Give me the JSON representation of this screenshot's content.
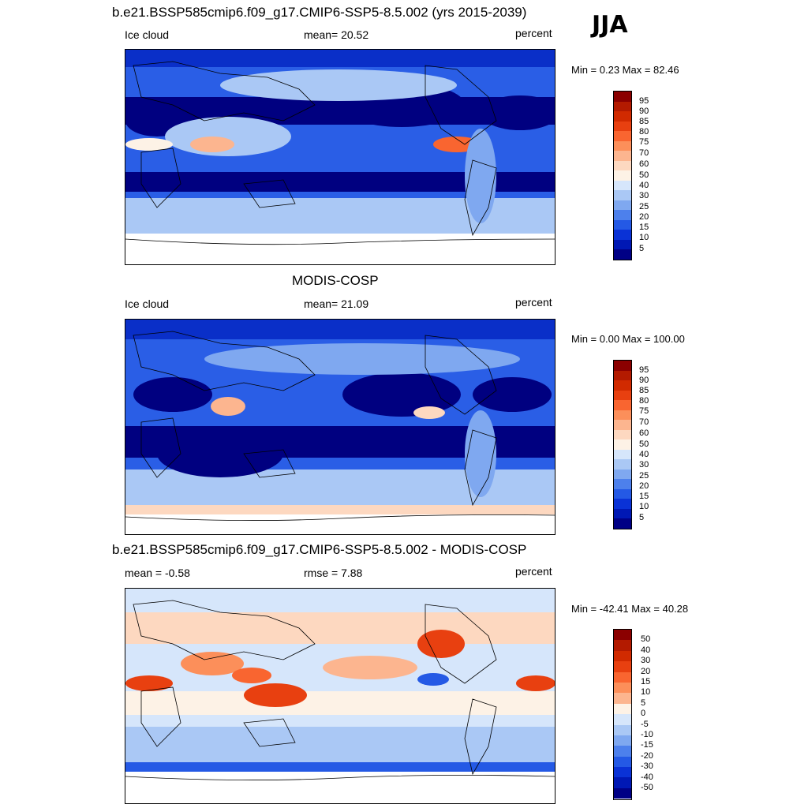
{
  "season": "JJA",
  "panels": [
    {
      "title": "b.e21.BSSP585cmip6.f09_g17.CMIP6-SSP5-8.5.002 (yrs 2015-2039)",
      "left_text": "Ice cloud",
      "center_text": "mean=  20.52",
      "right_text": "percent",
      "minmax": "Min =   0.23 Max =  82.46",
      "colorbar_labels": [
        "95",
        "90",
        "85",
        "80",
        "75",
        "70",
        "60",
        "50",
        "40",
        "30",
        "25",
        "20",
        "15",
        "10",
        "5"
      ]
    },
    {
      "title": "MODIS-COSP",
      "left_text": "Ice cloud",
      "center_text": "mean=  21.09",
      "right_text": "percent",
      "minmax": "Min =   0.00 Max = 100.00",
      "colorbar_labels": [
        "95",
        "90",
        "85",
        "80",
        "75",
        "70",
        "60",
        "50",
        "40",
        "30",
        "25",
        "20",
        "15",
        "10",
        "5"
      ]
    },
    {
      "title": "b.e21.BSSP585cmip6.f09_g17.CMIP6-SSP5-8.5.002 - MODIS-COSP",
      "left_text": "mean =  -0.58",
      "center_text": "rmse =   7.88",
      "right_text": "percent",
      "minmax": "Min = -42.41 Max =  40.28",
      "colorbar_labels": [
        "50",
        "40",
        "30",
        "20",
        "15",
        "10",
        "5",
        "0",
        "-5",
        "-10",
        "-15",
        "-20",
        "-30",
        "-40",
        "-50"
      ]
    }
  ],
  "colorbar_colors": [
    "#8b0000",
    "#b31a00",
    "#d12a00",
    "#e84010",
    "#f96530",
    "#fc8f5a",
    "#fcb58f",
    "#fdd8c0",
    "#fdf2e6",
    "#d6e6fb",
    "#aac8f5",
    "#7fa8f0",
    "#4d80ec",
    "#2459e5",
    "#0a32d6",
    "#0018b4",
    "#000085"
  ]
}
